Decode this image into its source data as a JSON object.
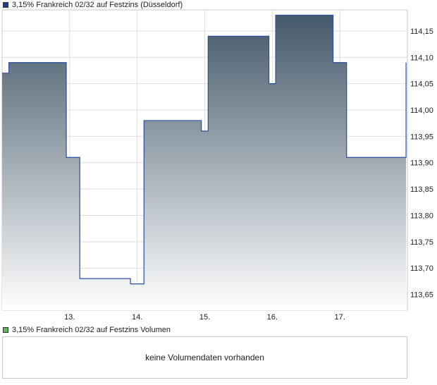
{
  "price_legend": {
    "label": "3,15% Frankreich 02/32 auf Festzins (Düsseldorf)",
    "color": "#1f3a93"
  },
  "volume_legend": {
    "label": "3,15% Frankreich 02/32 auf Festzins Volumen",
    "color": "#5cb85c"
  },
  "volume_panel": {
    "message": "keine Volumendaten vorhanden"
  },
  "chart_data": {
    "type": "area",
    "title": "3,15% Frankreich 02/32 auf Festzins (Düsseldorf)",
    "xlabel": "",
    "ylabel": "",
    "x_tick_labels": [
      "13.",
      "14.",
      "15.",
      "16.",
      "17."
    ],
    "y_tick_labels": [
      "113,65",
      "113,70",
      "113,75",
      "113,80",
      "113,85",
      "113,90",
      "113,95",
      "114,00",
      "114,05",
      "114,10",
      "114,15"
    ],
    "ylim": [
      113.62,
      114.19
    ],
    "xlim": [
      12.0,
      18.0
    ],
    "grid": true,
    "series": [
      {
        "name": "3,15% Frankreich 02/32 auf Festzins (Düsseldorf)",
        "x": [
          12.0,
          12.1,
          12.95,
          13.15,
          13.9,
          14.1,
          14.95,
          15.05,
          15.95,
          16.05,
          16.9,
          17.1,
          17.98
        ],
        "values": [
          114.07,
          114.09,
          113.91,
          113.68,
          113.67,
          113.98,
          113.96,
          114.14,
          114.05,
          114.18,
          114.09,
          113.91,
          114.09
        ]
      }
    ],
    "colors": {
      "line": "#2b4f9e",
      "fill_top": "#44596a",
      "fill_bottom": "#ffffff",
      "grid": "#dddddd"
    }
  }
}
